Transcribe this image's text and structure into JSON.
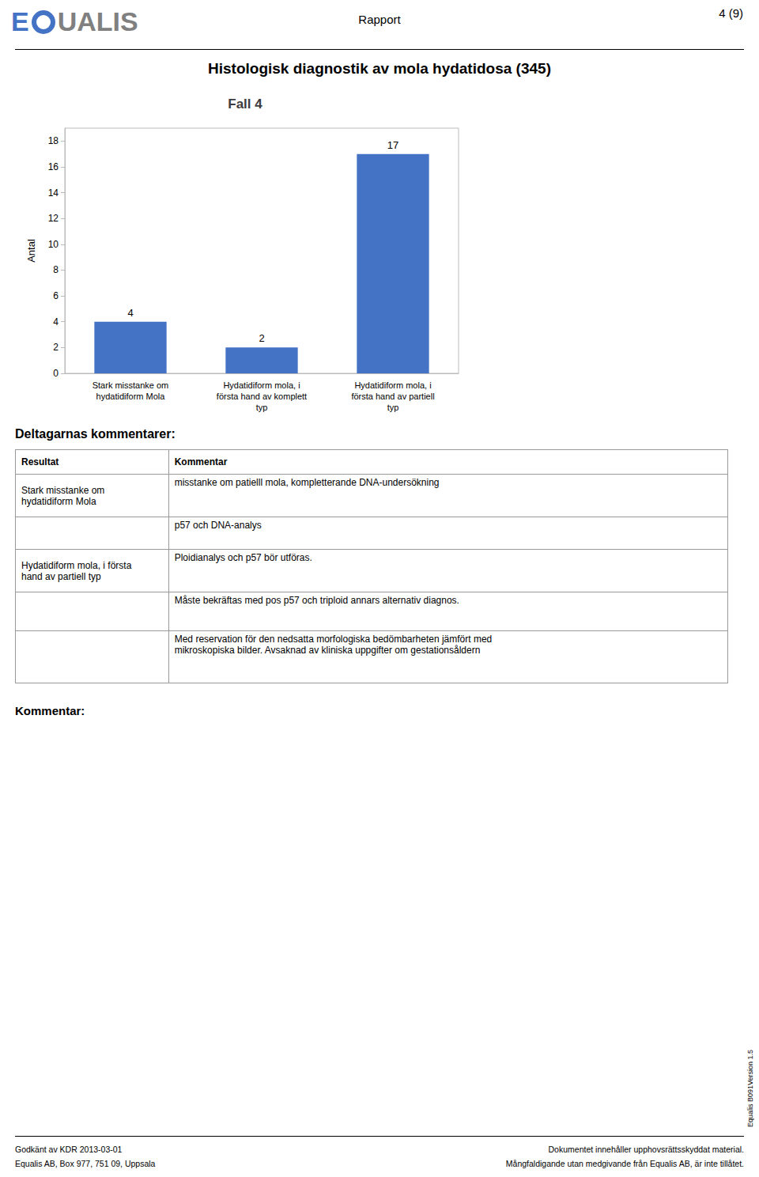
{
  "header": {
    "logo": [
      "E",
      "UALIS"
    ],
    "report": "Rapport",
    "page": "4 (9)"
  },
  "main_title": "Histologisk diagnostik av mola hydatidosa (345)",
  "chart_data": {
    "type": "bar",
    "title": "Fall 4",
    "categories": [
      "Stark misstanke om\nhydatidiform Mola",
      "Hydatidiform mola, i\nförsta hand av komplett\ntyp",
      "Hydatidiform mola, i\nförsta hand av partiell\ntyp"
    ],
    "values": [
      4,
      2,
      17
    ],
    "color": "#4472C4",
    "ylabel": "Antal",
    "ylim": [
      0,
      19
    ],
    "yticks": [
      0,
      2,
      4,
      6,
      8,
      10,
      12,
      14,
      16,
      18
    ],
    "grid": false,
    "data_labels": true
  },
  "section_title": "Deltagarnas kommentarer:",
  "table": {
    "headers": [
      "Resultat",
      "Kommentar"
    ],
    "rows": [
      [
        "Stark misstanke om\nhydatidiform Mola",
        "misstanke om patielll mola, kompletterande DNA-undersökning"
      ],
      [
        null,
        "p57 och DNA-analys"
      ],
      [
        "Hydatidiform mola, i första\nhand av partiell typ",
        "Ploidianalys och p57 bör utföras."
      ],
      [
        null,
        "Måste bekräftas med pos p57 och triploid annars alternativ diagnos."
      ],
      [
        null,
        "Med reservation för den nedsatta morfologiska bedömbarheten jämfört med\nmikroskopiska bilder. Avsaknad av kliniska uppgifter om gestationsåldern"
      ]
    ]
  },
  "comment_label": "Kommentar:",
  "footer": {
    "left": [
      "Godkänt av KDR 2013-03-01",
      "Equalis AB, Box 977, 751 09, Uppsala"
    ],
    "right": [
      "Dokumentet innehåller upphovsrättsskyddat material.",
      "Mångfaldigande utan medgivande från Equalis AB, är inte tillåtet."
    ],
    "version": "Equalis  B091Version 1.5"
  }
}
